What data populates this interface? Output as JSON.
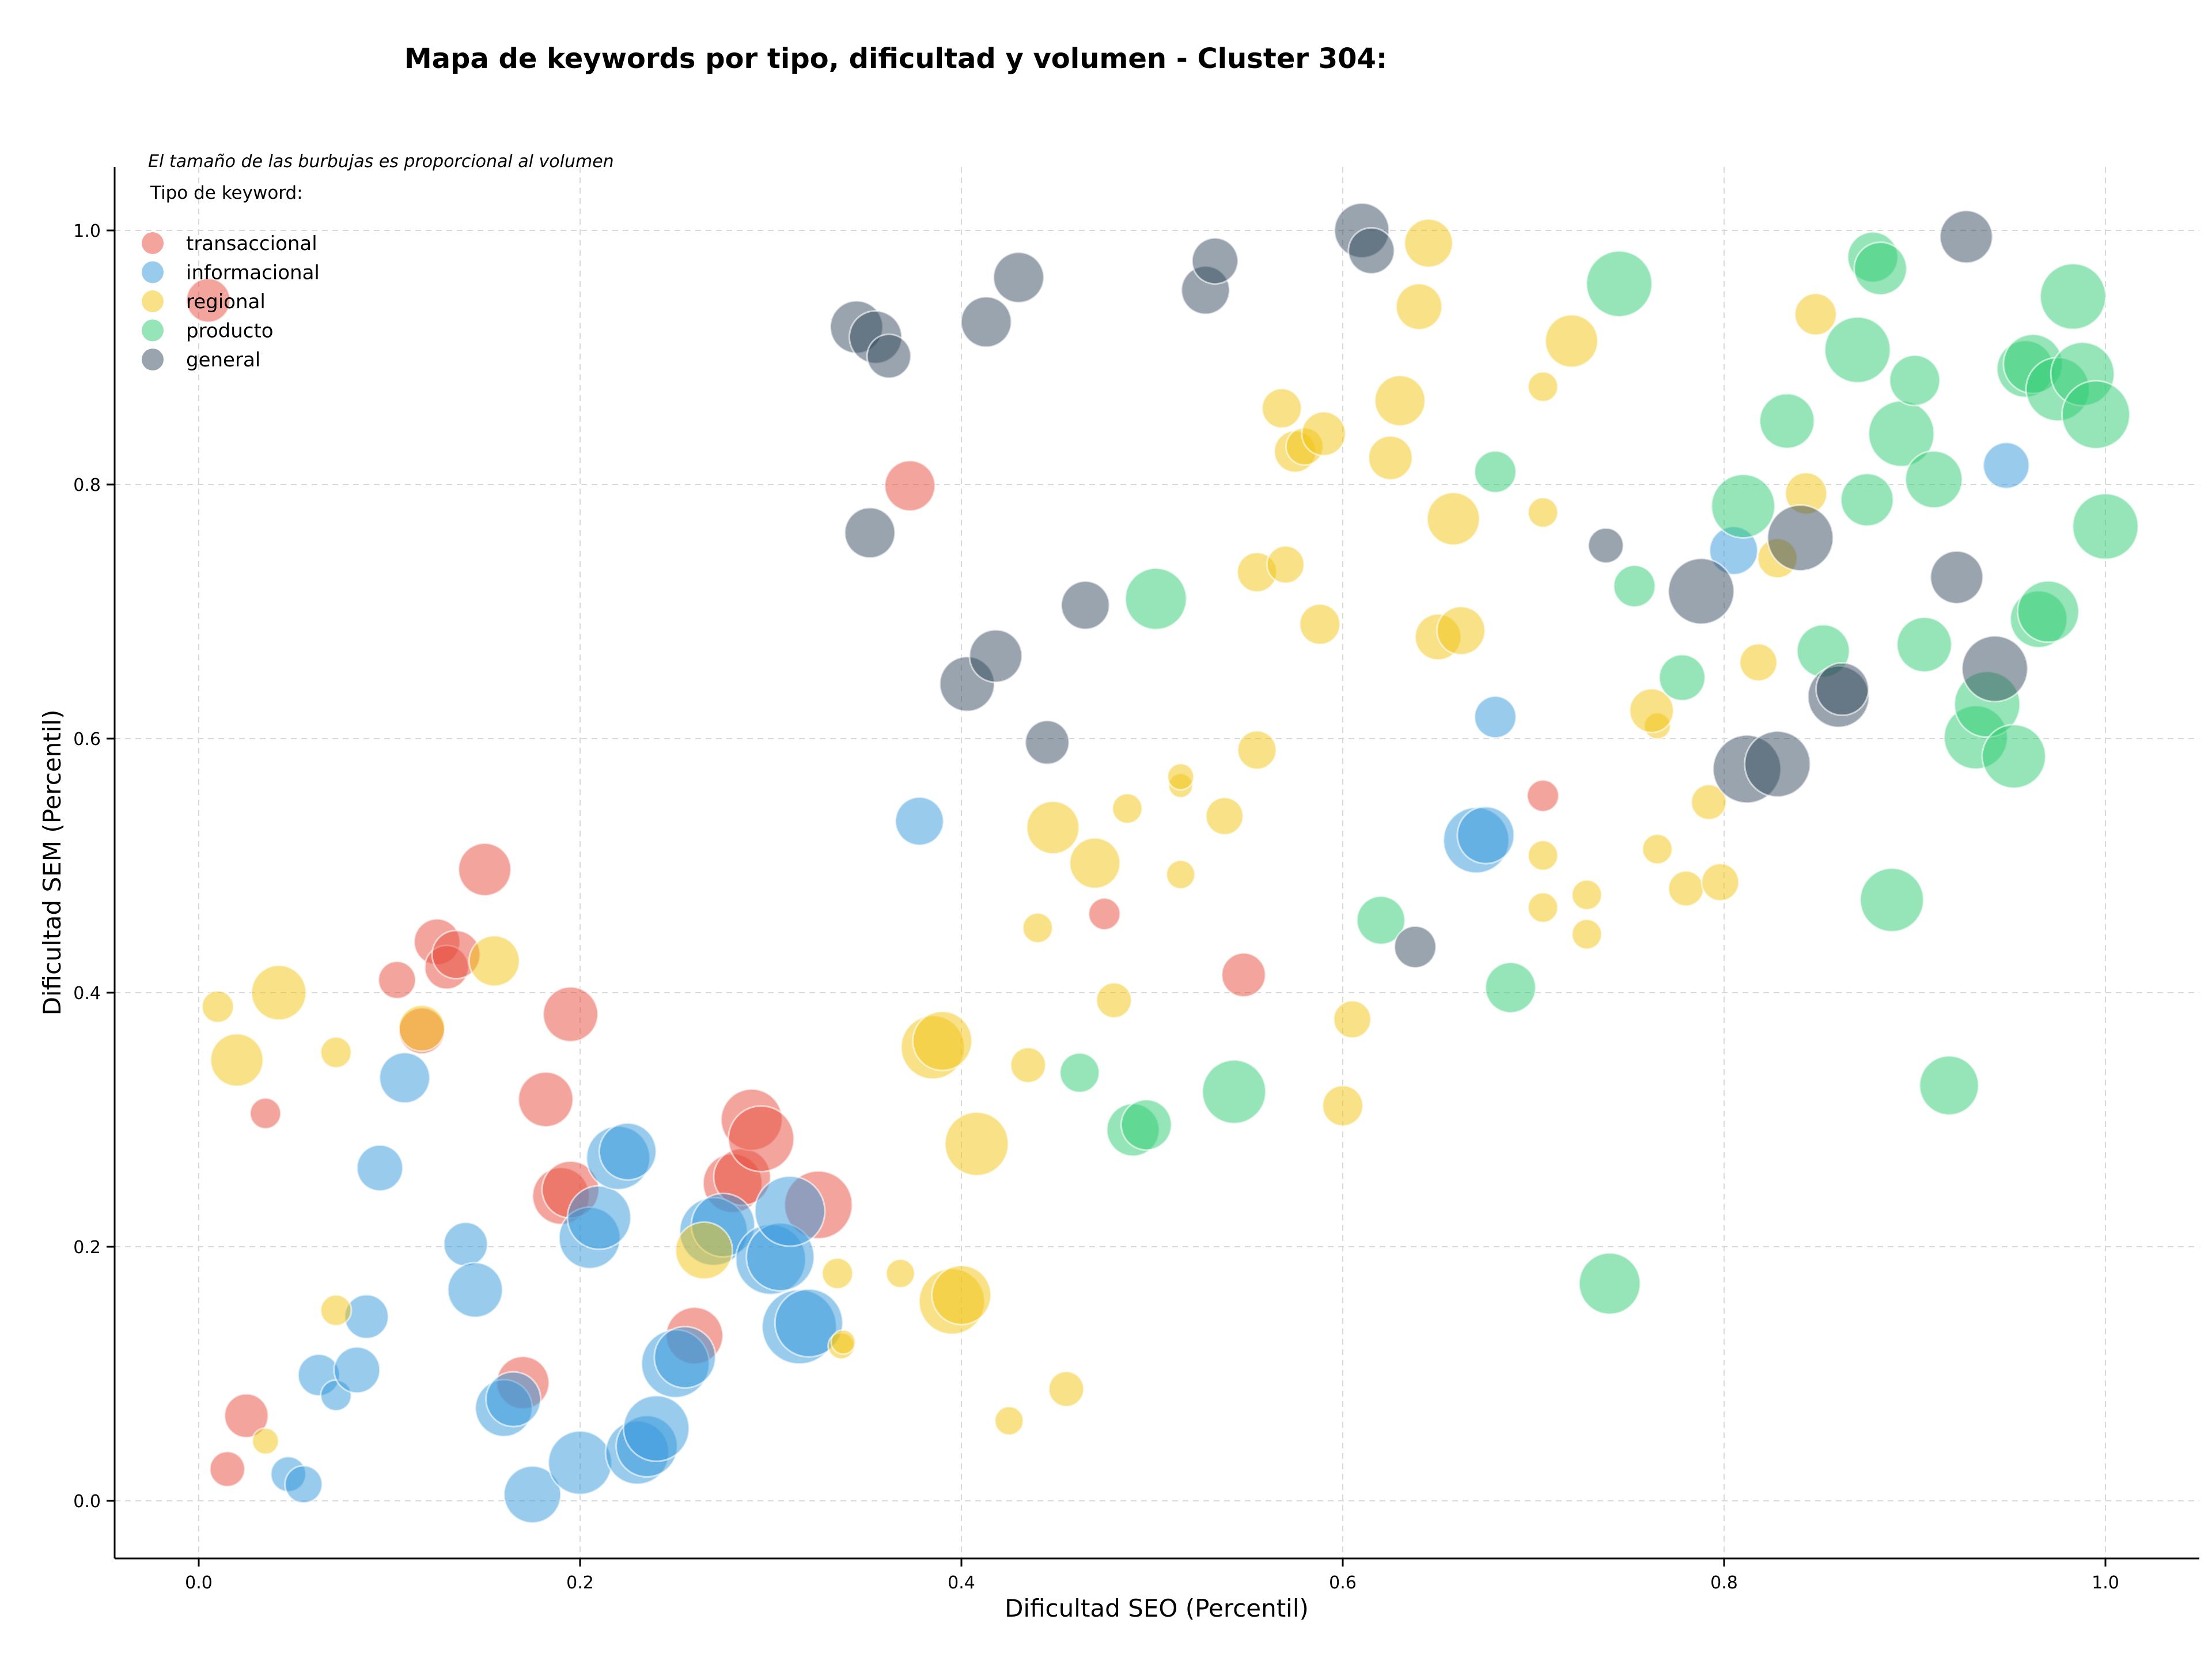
{
  "chart_data": {
    "type": "scatter",
    "title": "Mapa de keywords por tipo, dificultad y volumen - Cluster 304:",
    "xlabel": "Dificultad SEO (Percentil)",
    "ylabel": "Dificultad SEM (Percentil)",
    "xlim": [
      -0.045,
      1.05
    ],
    "ylim": [
      -0.045,
      1.05
    ],
    "x_ticks": [
      "0.0",
      "0.2",
      "0.4",
      "0.6",
      "0.8",
      "1.0"
    ],
    "y_ticks": [
      "0.0",
      "0.2",
      "0.4",
      "0.6",
      "0.8",
      "1.0"
    ],
    "grid": true,
    "size_note": "El tamaño de las burbujas es proporcional al volumen",
    "legend_title": "Tipo de keyword:",
    "legend_position": "top-left",
    "series": [
      {
        "name": "transaccional",
        "color": "#e74c3c",
        "points": [
          [
            0.005,
            0.945,
            1.0
          ],
          [
            0.035,
            0.305,
            0.7
          ],
          [
            0.015,
            0.025,
            0.8
          ],
          [
            0.025,
            0.067,
            1.0
          ],
          [
            0.104,
            0.41,
            0.85
          ],
          [
            0.125,
            0.44,
            1.05
          ],
          [
            0.13,
            0.42,
            1.0
          ],
          [
            0.135,
            0.43,
            1.1
          ],
          [
            0.15,
            0.497,
            1.2
          ],
          [
            0.117,
            0.37,
            1.05
          ],
          [
            0.195,
            0.383,
            1.25
          ],
          [
            0.182,
            0.316,
            1.25
          ],
          [
            0.19,
            0.24,
            1.3
          ],
          [
            0.195,
            0.245,
            1.3
          ],
          [
            0.17,
            0.093,
            1.2
          ],
          [
            0.26,
            0.13,
            1.3
          ],
          [
            0.28,
            0.25,
            1.35
          ],
          [
            0.285,
            0.255,
            1.3
          ],
          [
            0.29,
            0.3,
            1.4
          ],
          [
            0.295,
            0.285,
            1.5
          ],
          [
            0.325,
            0.233,
            1.55
          ],
          [
            0.373,
            0.799,
            1.15
          ],
          [
            0.475,
            0.462,
            0.72
          ],
          [
            0.548,
            0.414,
            1.0
          ],
          [
            0.705,
            0.555,
            0.72
          ]
        ]
      },
      {
        "name": "informacional",
        "color": "#3498db",
        "points": [
          [
            0.047,
            0.021,
            0.8
          ],
          [
            0.055,
            0.013,
            0.85
          ],
          [
            0.063,
            0.099,
            0.95
          ],
          [
            0.072,
            0.083,
            0.7
          ],
          [
            0.083,
            0.103,
            1.05
          ],
          [
            0.088,
            0.145,
            1.0
          ],
          [
            0.095,
            0.262,
            1.05
          ],
          [
            0.108,
            0.333,
            1.15
          ],
          [
            0.14,
            0.202,
            1.0
          ],
          [
            0.145,
            0.166,
            1.25
          ],
          [
            0.16,
            0.073,
            1.3
          ],
          [
            0.165,
            0.08,
            1.25
          ],
          [
            0.175,
            0.005,
            1.3
          ],
          [
            0.2,
            0.03,
            1.45
          ],
          [
            0.205,
            0.207,
            1.4
          ],
          [
            0.21,
            0.223,
            1.45
          ],
          [
            0.22,
            0.27,
            1.45
          ],
          [
            0.225,
            0.275,
            1.3
          ],
          [
            0.23,
            0.038,
            1.45
          ],
          [
            0.235,
            0.043,
            1.4
          ],
          [
            0.24,
            0.057,
            1.5
          ],
          [
            0.25,
            0.108,
            1.55
          ],
          [
            0.255,
            0.113,
            1.4
          ],
          [
            0.27,
            0.212,
            1.55
          ],
          [
            0.275,
            0.217,
            1.45
          ],
          [
            0.3,
            0.19,
            1.6
          ],
          [
            0.305,
            0.192,
            1.55
          ],
          [
            0.31,
            0.228,
            1.6
          ],
          [
            0.315,
            0.137,
            1.7
          ],
          [
            0.32,
            0.14,
            1.55
          ],
          [
            0.378,
            0.535,
            1.1
          ],
          [
            0.67,
            0.52,
            1.5
          ],
          [
            0.675,
            0.524,
            1.3
          ],
          [
            0.68,
            0.617,
            0.95
          ],
          [
            0.805,
            0.748,
            1.1
          ],
          [
            0.948,
            0.815,
            1.05
          ]
        ]
      },
      {
        "name": "regional",
        "color": "#f1c40f",
        "points": [
          [
            0.01,
            0.389,
            0.72
          ],
          [
            0.02,
            0.347,
            1.2
          ],
          [
            0.035,
            0.047,
            0.6
          ],
          [
            0.042,
            0.4,
            1.25
          ],
          [
            0.072,
            0.353,
            0.7
          ],
          [
            0.072,
            0.15,
            0.7
          ],
          [
            0.117,
            0.372,
            1.05
          ],
          [
            0.155,
            0.425,
            1.15
          ],
          [
            0.265,
            0.197,
            1.3
          ],
          [
            0.335,
            0.179,
            0.7
          ],
          [
            0.337,
            0.122,
            0.6
          ],
          [
            0.338,
            0.125,
            0.55
          ],
          [
            0.368,
            0.179,
            0.65
          ],
          [
            0.385,
            0.357,
            1.45
          ],
          [
            0.39,
            0.362,
            1.35
          ],
          [
            0.395,
            0.157,
            1.5
          ],
          [
            0.4,
            0.162,
            1.35
          ],
          [
            0.408,
            0.281,
            1.45
          ],
          [
            0.425,
            0.063,
            0.65
          ],
          [
            0.435,
            0.343,
            0.8
          ],
          [
            0.44,
            0.451,
            0.68
          ],
          [
            0.448,
            0.53,
            1.2
          ],
          [
            0.455,
            0.088,
            0.8
          ],
          [
            0.47,
            0.502,
            1.15
          ],
          [
            0.48,
            0.394,
            0.8
          ],
          [
            0.487,
            0.545,
            0.68
          ],
          [
            0.515,
            0.563,
            0.55
          ],
          [
            0.515,
            0.493,
            0.65
          ],
          [
            0.515,
            0.57,
            0.6
          ],
          [
            0.538,
            0.539,
            0.85
          ],
          [
            0.555,
            0.591,
            0.88
          ],
          [
            0.555,
            0.731,
            0.9
          ],
          [
            0.57,
            0.737,
            0.85
          ],
          [
            0.568,
            0.86,
            0.9
          ],
          [
            0.575,
            0.826,
            0.95
          ],
          [
            0.58,
            0.83,
            0.85
          ],
          [
            0.59,
            0.84,
            1.0
          ],
          [
            0.588,
            0.69,
            0.92
          ],
          [
            0.6,
            0.311,
            0.92
          ],
          [
            0.605,
            0.379,
            0.85
          ],
          [
            0.625,
            0.821,
            1.0
          ],
          [
            0.63,
            0.866,
            1.15
          ],
          [
            0.64,
            0.94,
            1.05
          ],
          [
            0.645,
            0.99,
            1.1
          ],
          [
            0.65,
            0.68,
            1.05
          ],
          [
            0.658,
            0.773,
            1.2
          ],
          [
            0.662,
            0.685,
            1.1
          ],
          [
            0.705,
            0.877,
            0.68
          ],
          [
            0.705,
            0.778,
            0.68
          ],
          [
            0.705,
            0.508,
            0.68
          ],
          [
            0.705,
            0.467,
            0.68
          ],
          [
            0.72,
            0.913,
            1.2
          ],
          [
            0.728,
            0.477,
            0.68
          ],
          [
            0.728,
            0.446,
            0.68
          ],
          [
            0.765,
            0.61,
            0.6
          ],
          [
            0.765,
            0.513,
            0.68
          ],
          [
            0.762,
            0.622,
            1.0
          ],
          [
            0.78,
            0.482,
            0.8
          ],
          [
            0.792,
            0.55,
            0.8
          ],
          [
            0.798,
            0.487,
            0.85
          ],
          [
            0.818,
            0.66,
            0.85
          ],
          [
            0.828,
            0.742,
            0.9
          ],
          [
            0.843,
            0.793,
            0.95
          ],
          [
            0.848,
            0.934,
            0.95
          ]
        ]
      },
      {
        "name": "producto",
        "color": "#2ecc71",
        "points": [
          [
            0.462,
            0.337,
            0.9
          ],
          [
            0.49,
            0.292,
            1.2
          ],
          [
            0.497,
            0.296,
            1.15
          ],
          [
            0.502,
            0.71,
            1.4
          ],
          [
            0.543,
            0.322,
            1.45
          ],
          [
            0.62,
            0.457,
            1.1
          ],
          [
            0.68,
            0.81,
            0.95
          ],
          [
            0.688,
            0.404,
            1.15
          ],
          [
            0.74,
            0.171,
            1.4
          ],
          [
            0.745,
            0.958,
            1.5
          ],
          [
            0.753,
            0.72,
            0.95
          ],
          [
            0.778,
            0.648,
            1.05
          ],
          [
            0.81,
            0.783,
            1.45
          ],
          [
            0.833,
            0.85,
            1.25
          ],
          [
            0.852,
            0.669,
            1.2
          ],
          [
            0.87,
            0.906,
            1.5
          ],
          [
            0.875,
            0.788,
            1.2
          ],
          [
            0.878,
            0.979,
            1.15
          ],
          [
            0.882,
            0.97,
            1.2
          ],
          [
            0.888,
            0.473,
            1.45
          ],
          [
            0.893,
            0.84,
            1.5
          ],
          [
            0.9,
            0.882,
            1.15
          ],
          [
            0.905,
            0.674,
            1.25
          ],
          [
            0.91,
            0.804,
            1.3
          ],
          [
            0.918,
            0.327,
            1.35
          ],
          [
            0.932,
            0.601,
            1.45
          ],
          [
            0.938,
            0.627,
            1.5
          ],
          [
            0.952,
            0.586,
            1.45
          ],
          [
            0.958,
            0.891,
            1.3
          ],
          [
            0.962,
            0.895,
            1.35
          ],
          [
            0.965,
            0.694,
            1.3
          ],
          [
            0.97,
            0.7,
            1.4
          ],
          [
            0.975,
            0.875,
            1.45
          ],
          [
            0.983,
            0.948,
            1.5
          ],
          [
            0.988,
            0.887,
            1.45
          ],
          [
            0.995,
            0.855,
            1.55
          ],
          [
            1.0,
            0.767,
            1.5
          ]
        ]
      },
      {
        "name": "general",
        "color": "#34495e",
        "points": [
          [
            0.345,
            0.924,
            1.2
          ],
          [
            0.355,
            0.916,
            1.2
          ],
          [
            0.362,
            0.901,
            1.0
          ],
          [
            0.352,
            0.762,
            1.15
          ],
          [
            0.403,
            0.643,
            1.25
          ],
          [
            0.413,
            0.928,
            1.15
          ],
          [
            0.418,
            0.665,
            1.2
          ],
          [
            0.43,
            0.963,
            1.15
          ],
          [
            0.445,
            0.597,
            1.0
          ],
          [
            0.465,
            0.705,
            1.1
          ],
          [
            0.528,
            0.953,
            1.1
          ],
          [
            0.533,
            0.976,
            1.05
          ],
          [
            0.61,
            1.0,
            1.25
          ],
          [
            0.615,
            0.984,
            1.05
          ],
          [
            0.638,
            0.436,
            0.95
          ],
          [
            0.738,
            0.752,
            0.8
          ],
          [
            0.788,
            0.716,
            1.5
          ],
          [
            0.812,
            0.576,
            1.55
          ],
          [
            0.828,
            0.58,
            1.5
          ],
          [
            0.84,
            0.758,
            1.5
          ],
          [
            0.86,
            0.633,
            1.4
          ],
          [
            0.862,
            0.639,
            1.2
          ],
          [
            0.922,
            0.727,
            1.2
          ],
          [
            0.927,
            0.995,
            1.2
          ],
          [
            0.942,
            0.655,
            1.5
          ]
        ]
      }
    ]
  }
}
